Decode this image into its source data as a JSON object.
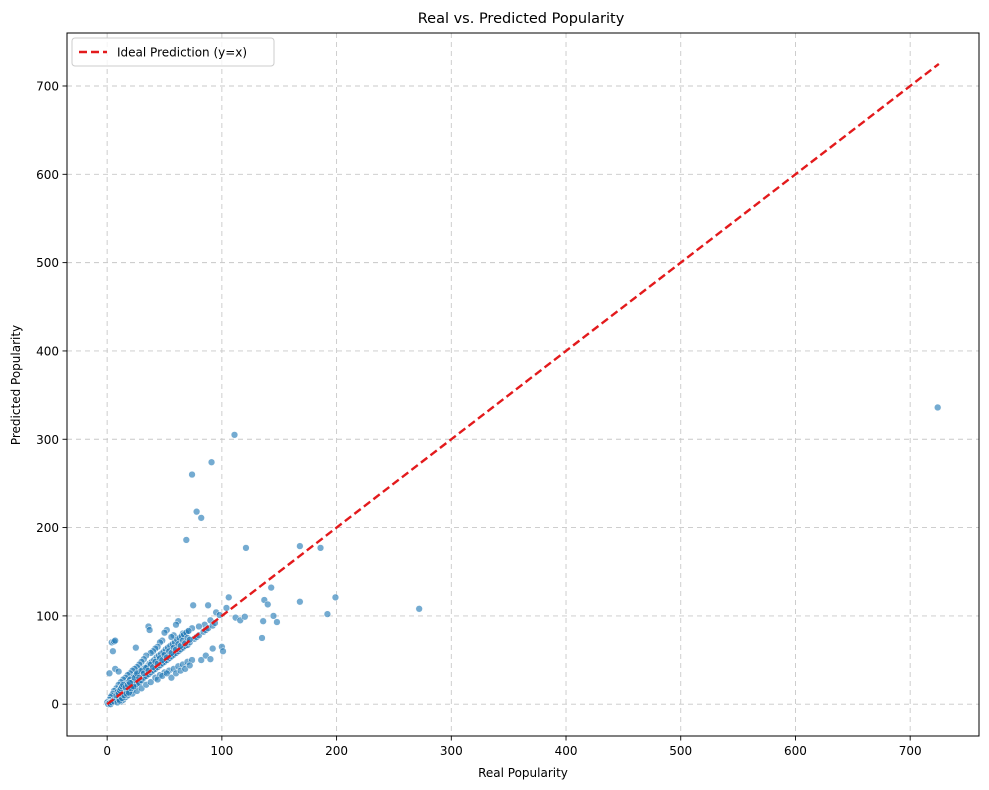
{
  "chart_data": {
    "type": "scatter",
    "title": "Real vs. Predicted Popularity",
    "xlabel": "Real Popularity",
    "ylabel": "Predicted Popularity",
    "xlim": [
      -35,
      760
    ],
    "ylim": [
      -36,
      760
    ],
    "xticks": [
      0,
      100,
      200,
      300,
      400,
      500,
      600,
      700
    ],
    "yticks": [
      0,
      100,
      200,
      300,
      400,
      500,
      600,
      700
    ],
    "grid": true,
    "legend": {
      "position": "top-left",
      "entries": [
        {
          "label": "Ideal Prediction (y=x)",
          "color": "#e31a1c",
          "style": "dashed"
        }
      ]
    },
    "ideal_line": {
      "from": [
        0,
        0
      ],
      "to": [
        725,
        725
      ]
    },
    "series": [
      {
        "color": "#1f77b4",
        "points": [
          [
            724,
            336
          ],
          [
            111,
            305
          ],
          [
            91,
            274
          ],
          [
            74,
            260
          ],
          [
            78,
            218
          ],
          [
            82,
            211
          ],
          [
            69,
            186
          ],
          [
            121,
            177
          ],
          [
            168,
            179
          ],
          [
            186,
            177
          ],
          [
            272,
            108
          ],
          [
            199,
            121
          ],
          [
            192,
            102
          ],
          [
            168,
            116
          ],
          [
            137,
            118
          ],
          [
            140,
            113
          ],
          [
            143,
            132
          ],
          [
            145,
            100
          ],
          [
            148,
            93
          ],
          [
            136,
            94
          ],
          [
            135,
            75
          ],
          [
            106,
            121
          ],
          [
            112,
            98
          ],
          [
            116,
            95
          ],
          [
            120,
            99
          ],
          [
            104,
            109
          ],
          [
            100,
            65
          ],
          [
            101,
            60
          ],
          [
            95,
            104
          ],
          [
            98,
            101
          ],
          [
            90,
            95
          ],
          [
            88,
            112
          ],
          [
            85,
            90
          ],
          [
            80,
            88
          ],
          [
            82,
            50
          ],
          [
            86,
            55
          ],
          [
            90,
            51
          ],
          [
            92,
            63
          ],
          [
            75,
            112
          ],
          [
            74,
            86
          ],
          [
            70,
            82
          ],
          [
            66,
            80
          ],
          [
            62,
            94
          ],
          [
            60,
            90
          ],
          [
            58,
            78
          ],
          [
            56,
            76
          ],
          [
            52,
            84
          ],
          [
            50,
            81
          ],
          [
            48,
            72
          ],
          [
            46,
            70
          ],
          [
            44,
            65
          ],
          [
            42,
            63
          ],
          [
            40,
            60
          ],
          [
            38,
            58
          ],
          [
            36,
            88
          ],
          [
            37,
            84
          ],
          [
            34,
            55
          ],
          [
            32,
            51
          ],
          [
            30,
            48
          ],
          [
            28,
            45
          ],
          [
            26,
            42
          ],
          [
            24,
            40
          ],
          [
            22,
            38
          ],
          [
            20,
            35
          ],
          [
            18,
            33
          ],
          [
            16,
            30
          ],
          [
            14,
            28
          ],
          [
            12,
            25
          ],
          [
            10,
            22
          ],
          [
            8,
            18
          ],
          [
            6,
            15
          ],
          [
            5,
            12
          ],
          [
            4,
            10
          ],
          [
            3,
            8
          ],
          [
            2,
            5
          ],
          [
            1,
            3
          ],
          [
            0,
            2
          ],
          [
            1,
            1
          ],
          [
            3,
            2
          ],
          [
            5,
            4
          ],
          [
            7,
            6
          ],
          [
            9,
            8
          ],
          [
            11,
            9
          ],
          [
            13,
            12
          ],
          [
            15,
            13
          ],
          [
            17,
            15
          ],
          [
            19,
            17
          ],
          [
            21,
            19
          ],
          [
            23,
            21
          ],
          [
            25,
            23
          ],
          [
            27,
            26
          ],
          [
            29,
            27
          ],
          [
            31,
            29
          ],
          [
            33,
            31
          ],
          [
            35,
            33
          ],
          [
            37,
            35
          ],
          [
            39,
            37
          ],
          [
            41,
            39
          ],
          [
            43,
            41
          ],
          [
            45,
            43
          ],
          [
            47,
            45
          ],
          [
            49,
            47
          ],
          [
            51,
            49
          ],
          [
            53,
            51
          ],
          [
            55,
            53
          ],
          [
            57,
            55
          ],
          [
            59,
            57
          ],
          [
            61,
            59
          ],
          [
            63,
            61
          ],
          [
            65,
            63
          ],
          [
            67,
            65
          ],
          [
            4,
            70
          ],
          [
            6,
            71
          ],
          [
            7,
            72
          ],
          [
            5,
            60
          ],
          [
            7,
            40
          ],
          [
            10,
            37
          ],
          [
            2,
            35
          ],
          [
            25,
            64
          ],
          [
            12,
            3
          ],
          [
            14,
            5
          ],
          [
            16,
            8
          ],
          [
            18,
            10
          ],
          [
            20,
            14
          ],
          [
            22,
            16
          ],
          [
            24,
            20
          ],
          [
            26,
            22
          ],
          [
            28,
            24
          ],
          [
            30,
            27
          ],
          [
            32,
            30
          ],
          [
            34,
            32
          ],
          [
            36,
            34
          ],
          [
            38,
            36
          ],
          [
            40,
            38
          ],
          [
            42,
            40
          ],
          [
            44,
            42
          ],
          [
            46,
            44
          ],
          [
            48,
            46
          ],
          [
            50,
            48
          ],
          [
            52,
            50
          ],
          [
            54,
            52
          ],
          [
            56,
            54
          ],
          [
            58,
            56
          ],
          [
            60,
            58
          ],
          [
            62,
            60
          ],
          [
            64,
            62
          ],
          [
            66,
            64
          ],
          [
            68,
            66
          ],
          [
            70,
            67
          ],
          [
            72,
            70
          ],
          [
            76,
            74
          ],
          [
            78,
            76
          ],
          [
            80,
            78
          ],
          [
            84,
            82
          ],
          [
            86,
            84
          ],
          [
            88,
            86
          ],
          [
            92,
            89
          ],
          [
            94,
            92
          ],
          [
            15,
            20
          ],
          [
            17,
            24
          ],
          [
            19,
            26
          ],
          [
            21,
            29
          ],
          [
            23,
            31
          ],
          [
            25,
            33
          ],
          [
            27,
            35
          ],
          [
            29,
            37
          ],
          [
            31,
            39
          ],
          [
            33,
            41
          ],
          [
            35,
            43
          ],
          [
            37,
            46
          ],
          [
            39,
            48
          ],
          [
            41,
            50
          ],
          [
            43,
            53
          ],
          [
            45,
            55
          ],
          [
            47,
            57
          ],
          [
            49,
            59
          ],
          [
            51,
            62
          ],
          [
            53,
            64
          ],
          [
            55,
            66
          ],
          [
            57,
            68
          ],
          [
            59,
            70
          ],
          [
            61,
            73
          ],
          [
            63,
            75
          ],
          [
            65,
            77
          ],
          [
            67,
            79
          ],
          [
            69,
            81
          ],
          [
            71,
            83
          ],
          [
            20,
            28
          ],
          [
            22,
            25
          ],
          [
            24,
            30
          ],
          [
            26,
            35
          ],
          [
            28,
            30
          ],
          [
            30,
            38
          ],
          [
            32,
            35
          ],
          [
            34,
            41
          ],
          [
            36,
            38
          ],
          [
            38,
            45
          ],
          [
            40,
            42
          ],
          [
            42,
            48
          ],
          [
            44,
            46
          ],
          [
            46,
            52
          ],
          [
            48,
            50
          ],
          [
            50,
            56
          ],
          [
            52,
            53
          ],
          [
            54,
            60
          ],
          [
            56,
            58
          ],
          [
            58,
            64
          ],
          [
            60,
            62
          ],
          [
            62,
            68
          ],
          [
            64,
            66
          ],
          [
            66,
            72
          ],
          [
            68,
            69
          ],
          [
            70,
            75
          ],
          [
            72,
            73
          ],
          [
            22,
            12
          ],
          [
            26,
            15
          ],
          [
            30,
            18
          ],
          [
            34,
            22
          ],
          [
            38,
            25
          ],
          [
            42,
            30
          ],
          [
            46,
            33
          ],
          [
            50,
            36
          ],
          [
            54,
            38
          ],
          [
            58,
            40
          ],
          [
            62,
            43
          ],
          [
            66,
            45
          ],
          [
            70,
            48
          ],
          [
            74,
            50
          ],
          [
            56,
            30
          ],
          [
            60,
            35
          ],
          [
            64,
            38
          ],
          [
            68,
            40
          ],
          [
            72,
            44
          ],
          [
            44,
            28
          ],
          [
            48,
            32
          ],
          [
            52,
            35
          ],
          [
            1,
            0
          ],
          [
            2,
            1
          ],
          [
            3,
            0
          ],
          [
            4,
            2
          ],
          [
            6,
            3
          ],
          [
            8,
            5
          ],
          [
            9,
            2
          ],
          [
            10,
            6
          ],
          [
            11,
            4
          ],
          [
            13,
            7
          ],
          [
            15,
            10
          ],
          [
            17,
            12
          ],
          [
            19,
            13
          ],
          [
            21,
            18
          ],
          [
            23,
            20
          ],
          [
            8,
            10
          ],
          [
            9,
            14
          ],
          [
            10,
            12
          ],
          [
            11,
            16
          ],
          [
            12,
            18
          ],
          [
            13,
            20
          ],
          [
            14,
            22
          ],
          [
            16,
            19
          ],
          [
            18,
            22
          ],
          [
            20,
            24
          ]
        ]
      }
    ]
  }
}
